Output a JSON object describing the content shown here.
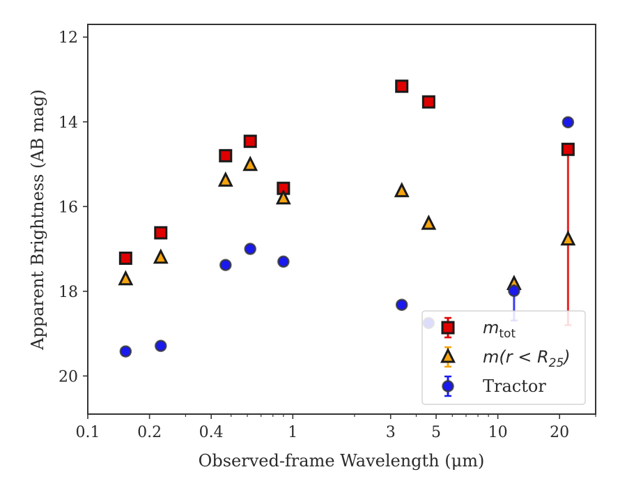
{
  "chart_data": {
    "type": "scatter",
    "xlabel": "Observed-frame Wavelength (μm)",
    "ylabel": "Apparent Brightness (AB mag)",
    "xscale": "log",
    "xlim": [
      0.1,
      30
    ],
    "ylim": [
      20.9,
      11.7
    ],
    "y_inverted": true,
    "x_ticks": [
      0.1,
      0.2,
      0.4,
      1,
      3,
      5,
      10,
      20
    ],
    "x_tick_labels": [
      "0.1",
      "0.2",
      "0.4",
      "1",
      "3",
      "5",
      "10",
      "20"
    ],
    "y_ticks": [
      12,
      14,
      16,
      18,
      20
    ],
    "y_tick_labels": [
      "12",
      "14",
      "16",
      "18",
      "20"
    ],
    "grid": false,
    "legend_position": "lower-right",
    "series": [
      {
        "name": "m_tot",
        "marker": "square",
        "color": "#e00000",
        "points": [
          {
            "x": 0.153,
            "y": 17.22
          },
          {
            "x": 0.227,
            "y": 16.62
          },
          {
            "x": 0.47,
            "y": 14.8
          },
          {
            "x": 0.62,
            "y": 14.46
          },
          {
            "x": 0.9,
            "y": 15.57
          },
          {
            "x": 3.4,
            "y": 13.16
          },
          {
            "x": 4.6,
            "y": 13.53
          },
          {
            "x": 22.0,
            "y": 14.65,
            "yerr_minus": 0.1,
            "yerr_plus": 4.15
          }
        ]
      },
      {
        "name": "m(r < R_25)",
        "marker": "triangle",
        "color": "#f5a40f",
        "points": [
          {
            "x": 0.153,
            "y": 17.72
          },
          {
            "x": 0.227,
            "y": 17.21
          },
          {
            "x": 0.47,
            "y": 15.39
          },
          {
            "x": 0.62,
            "y": 15.02
          },
          {
            "x": 0.9,
            "y": 15.81
          },
          {
            "x": 3.4,
            "y": 15.64
          },
          {
            "x": 4.6,
            "y": 16.41
          },
          {
            "x": 12.0,
            "y": 17.83
          },
          {
            "x": 22.0,
            "y": 16.78
          }
        ]
      },
      {
        "name": "Tractor",
        "marker": "circle",
        "color": "#1a1aee",
        "points": [
          {
            "x": 0.153,
            "y": 19.42
          },
          {
            "x": 0.227,
            "y": 19.29
          },
          {
            "x": 0.47,
            "y": 17.38
          },
          {
            "x": 0.62,
            "y": 17.0
          },
          {
            "x": 0.9,
            "y": 17.3
          },
          {
            "x": 3.4,
            "y": 18.32
          },
          {
            "x": 4.6,
            "y": 18.75
          },
          {
            "x": 12.0,
            "y": 17.99,
            "yerr_minus": 0.15,
            "yerr_plus": 0.7
          },
          {
            "x": 22.0,
            "y": 14.01
          }
        ]
      }
    ],
    "legend": {
      "entries": [
        {
          "series": 0,
          "prefix": "m",
          "subscript": "tot",
          "suffix": ""
        },
        {
          "series": 1,
          "prefix": "m(r < R",
          "subscript": "25",
          "suffix": ")"
        },
        {
          "series": 2,
          "prefix": "Tractor",
          "subscript": "",
          "suffix": ""
        }
      ]
    }
  }
}
